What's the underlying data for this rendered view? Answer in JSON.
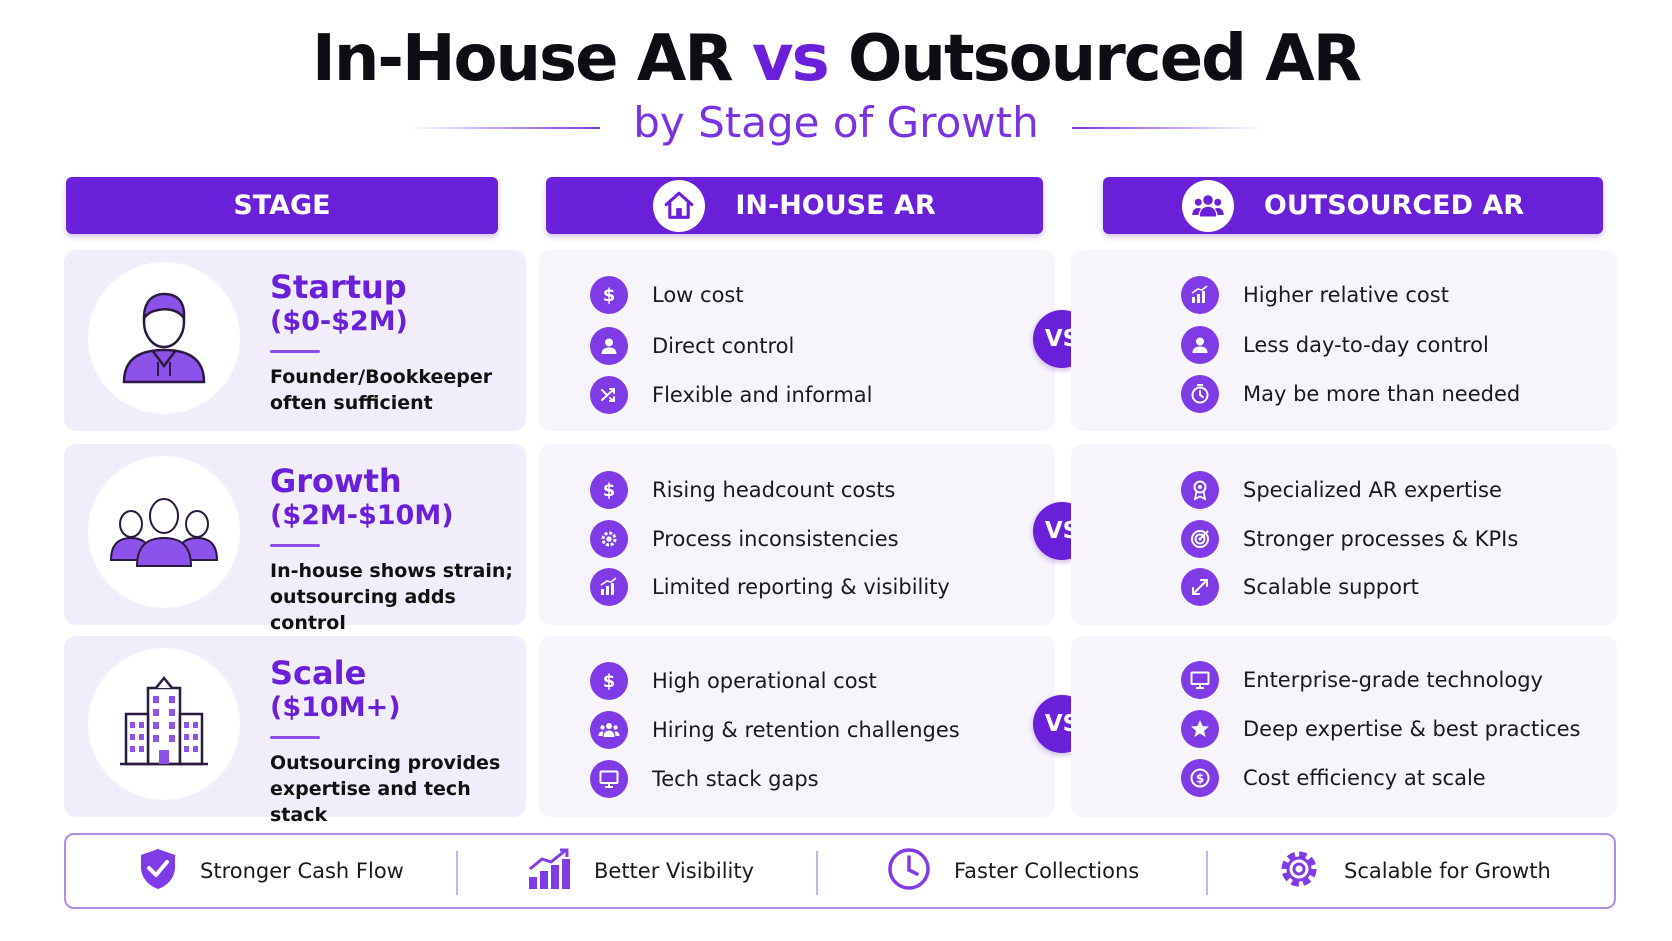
{
  "header": {
    "title_part1": "In-House AR",
    "title_vs": "vs",
    "title_part2": "Outsourced AR",
    "subtitle": "by Stage of Growth"
  },
  "columns": {
    "stage": "STAGE",
    "in_house": "IN-HOUSE AR",
    "outsourced": "OUTSOURCED AR"
  },
  "vs_label": "VS",
  "rows": [
    {
      "name": "Startup",
      "range": "($0-$2M)",
      "desc_line1": "Founder/Bookkeeper",
      "desc_line2": "often sufficient",
      "avatar_icon": "person-icon",
      "in_house": [
        {
          "icon": "dollar-icon",
          "text": "Low cost"
        },
        {
          "icon": "user-icon",
          "text": "Direct control"
        },
        {
          "icon": "shuffle-icon",
          "text": "Flexible and informal"
        }
      ],
      "outsourced": [
        {
          "icon": "bar-chart-icon",
          "text": "Higher relative cost"
        },
        {
          "icon": "user-icon",
          "text": "Less day-to-day control"
        },
        {
          "icon": "timer-icon",
          "text": "May be more than needed"
        }
      ]
    },
    {
      "name": "Growth",
      "range": "($2M-$10M)",
      "desc_line1": "In-house shows strain;",
      "desc_line2": "outsourcing adds control",
      "avatar_icon": "team-icon",
      "in_house": [
        {
          "icon": "dollar-icon",
          "text": "Rising headcount costs"
        },
        {
          "icon": "gear-icon",
          "text": "Process inconsistencies"
        },
        {
          "icon": "bar-chart-icon",
          "text": "Limited reporting & visibility"
        }
      ],
      "outsourced": [
        {
          "icon": "award-icon",
          "text": "Specialized AR expertise"
        },
        {
          "icon": "target-icon",
          "text": "Stronger processes & KPIs"
        },
        {
          "icon": "expand-icon",
          "text": "Scalable support"
        }
      ]
    },
    {
      "name": "Scale",
      "range": "($10M+)",
      "desc_line1": "Outsourcing provides",
      "desc_line2": "expertise and tech stack",
      "avatar_icon": "building-icon",
      "in_house": [
        {
          "icon": "dollar-icon",
          "text": "High operational cost"
        },
        {
          "icon": "group-icon",
          "text": "Hiring & retention challenges"
        },
        {
          "icon": "monitor-icon",
          "text": "Tech stack gaps"
        }
      ],
      "outsourced": [
        {
          "icon": "monitor-icon",
          "text": "Enterprise-grade technology"
        },
        {
          "icon": "star-icon",
          "text": "Deep expertise & best practices"
        },
        {
          "icon": "coin-icon",
          "text": "Cost efficiency at scale"
        }
      ]
    }
  ],
  "footer": [
    {
      "icon": "shield-check-icon",
      "text": "Stronger Cash Flow"
    },
    {
      "icon": "growth-chart-icon",
      "text": "Better Visibility"
    },
    {
      "icon": "clock-icon",
      "text": "Faster Collections"
    },
    {
      "icon": "gear-icon",
      "text": "Scalable for Growth"
    }
  ],
  "colors": {
    "primary": "#6a1fd8",
    "icon_bg": "#7f3be6",
    "card_bg": "#f7f4fc"
  }
}
